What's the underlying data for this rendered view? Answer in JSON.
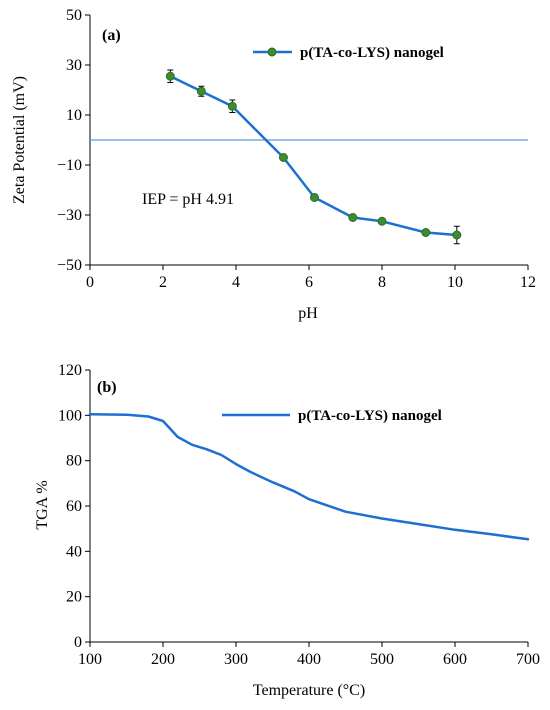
{
  "colors": {
    "series": "#1f6fd1",
    "marker": "#3c8d2f",
    "reference_line": "#5b9bd5",
    "axis": "#000000",
    "error_bar": "#000000"
  },
  "chart_data": [
    {
      "type": "line",
      "panel_label": "(a)",
      "xlabel": "pH",
      "ylabel": "Zeta Potential (mV)",
      "xlim": [
        0,
        12
      ],
      "ylim": [
        -50,
        50
      ],
      "x_ticks": [
        0,
        2,
        4,
        6,
        8,
        10,
        12
      ],
      "y_ticks": [
        50,
        30,
        10,
        -10,
        -30,
        -50
      ],
      "x_tick_labels": [
        "0",
        "2",
        "4",
        "6",
        "8",
        "10",
        "12"
      ],
      "y_tick_labels": [
        "50",
        "30",
        "10",
        "−10",
        "−30",
        "−50"
      ],
      "grid": false,
      "legend_position": "top-right",
      "series": [
        {
          "name": "p(TA-co-LYS) nanogel",
          "markers": "circle",
          "x": [
            2.2,
            3.05,
            3.9,
            5.3,
            6.15,
            7.2,
            8.0,
            9.2,
            10.05
          ],
          "y": [
            25.5,
            19.5,
            13.5,
            -7,
            -23,
            -31,
            -32.5,
            -37,
            -38
          ],
          "error": [
            2.5,
            2,
            2.5,
            0.5,
            0.5,
            0.5,
            0.5,
            0.5,
            3.5
          ]
        }
      ],
      "reference_line": {
        "y": 0
      },
      "annotation": "IEP = pH 4.91"
    },
    {
      "type": "line",
      "panel_label": "(b)",
      "xlabel": "Temperature (°C)",
      "ylabel": "TGA %",
      "xlim": [
        100,
        700
      ],
      "ylim": [
        0,
        120
      ],
      "x_ticks": [
        100,
        200,
        300,
        400,
        500,
        600,
        700
      ],
      "y_ticks": [
        0,
        20,
        40,
        60,
        80,
        100,
        120
      ],
      "x_tick_labels": [
        "100",
        "200",
        "300",
        "400",
        "500",
        "600",
        "700"
      ],
      "y_tick_labels": [
        "0",
        "20",
        "40",
        "60",
        "80",
        "100",
        "120"
      ],
      "grid": false,
      "legend_position": "top-right",
      "series": [
        {
          "name": "p(TA-co-LYS) nanogel",
          "markers": "none",
          "x": [
            100,
            150,
            180,
            200,
            210,
            220,
            240,
            260,
            280,
            300,
            320,
            350,
            380,
            400,
            450,
            500,
            550,
            600,
            650,
            700
          ],
          "y": [
            100.5,
            100.3,
            99.5,
            97.5,
            94,
            90.5,
            87,
            85,
            82.5,
            78.5,
            75,
            70.5,
            66.5,
            63,
            57.5,
            54.5,
            52,
            49.5,
            47.5,
            45.3
          ]
        }
      ]
    }
  ]
}
